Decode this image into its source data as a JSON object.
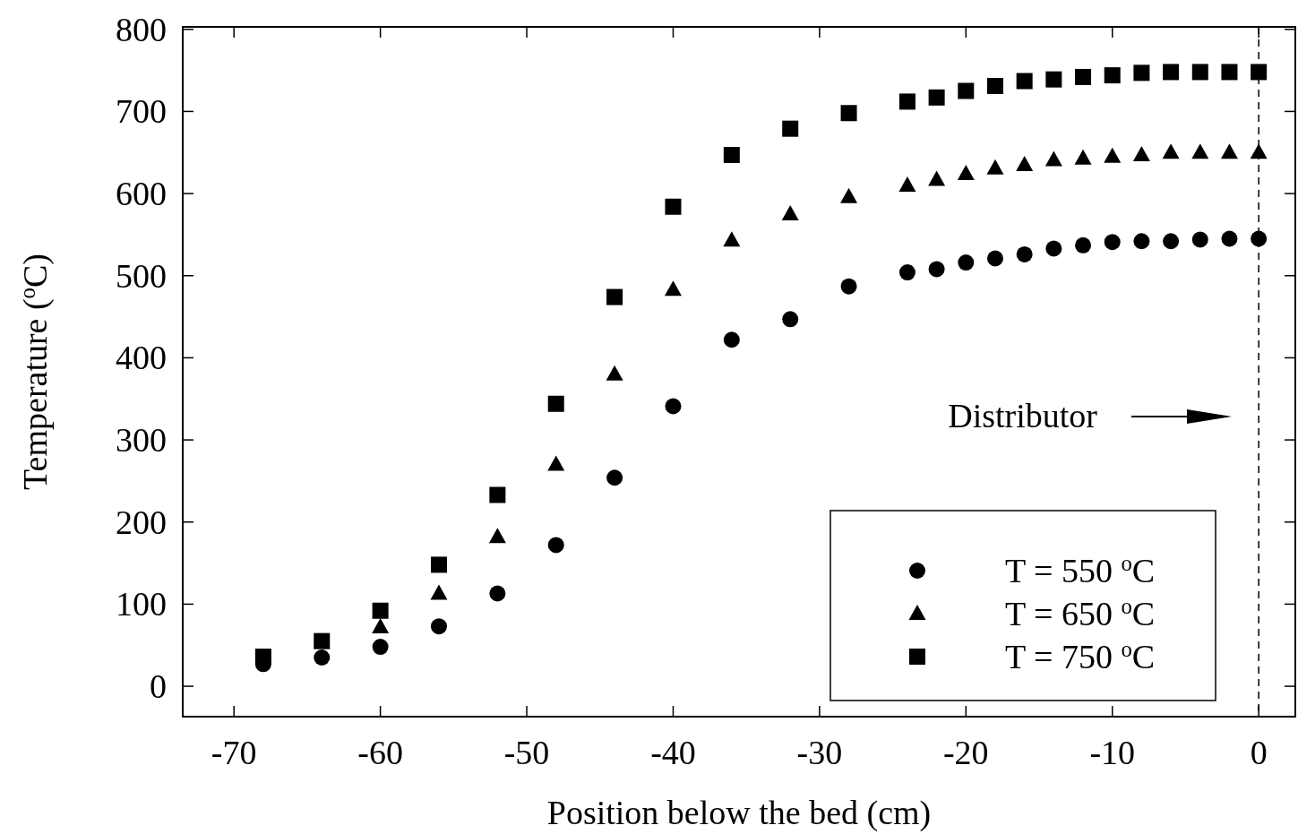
{
  "chart_data": {
    "type": "scatter",
    "xlabel": "Position below the bed (cm)",
    "ylabel": "Temperature ($^{o}$C)",
    "x": [
      -68,
      -64,
      -60,
      -56,
      -52,
      -48,
      -44,
      -40,
      -36,
      -32,
      -28,
      -24,
      -22,
      -20,
      -18,
      -16,
      -14,
      -12,
      -10,
      -8,
      -6,
      -4,
      -2,
      0
    ],
    "series": [
      {
        "name": "T = 550 $^{o}$C",
        "color": "#000000",
        "marker": "circle",
        "values": [
          27,
          35,
          48,
          73,
          113,
          172,
          254,
          341,
          422,
          447,
          487,
          504,
          508,
          516,
          521,
          526,
          533,
          537,
          541,
          542,
          542,
          544,
          545,
          545
        ]
      },
      {
        "name": "T = 650 $^{o}$C",
        "color": "#000000",
        "marker": "triangle",
        "values": [
          null,
          null,
          72,
          113,
          182,
          270,
          380,
          483,
          543,
          575,
          596,
          610,
          617,
          624,
          631,
          635,
          641,
          643,
          645,
          647,
          650,
          650,
          650,
          650
        ]
      },
      {
        "name": "T = 750 $^{o}$C",
        "color": "#000000",
        "marker": "square",
        "values": [
          36,
          55,
          92,
          148,
          233,
          344,
          474,
          584,
          647,
          679,
          698,
          712,
          717,
          725,
          731,
          737,
          739,
          742,
          744,
          747,
          748,
          748,
          748,
          748
        ]
      }
    ],
    "xlim": [
      -73.5,
      2.5
    ],
    "xticks": [
      -70,
      -60,
      -50,
      -40,
      -30,
      -20,
      -10,
      0
    ],
    "ylim": [
      -37,
      803
    ],
    "yticks": [
      0,
      100,
      200,
      300,
      400,
      500,
      600,
      700,
      800
    ],
    "ref_lines": [
      {
        "axis": "x",
        "value": 0,
        "line_style": "dashed",
        "color": "#000000"
      }
    ],
    "annotations": [
      "Distributor"
    ],
    "legend": "bottom right",
    "grid": false
  }
}
